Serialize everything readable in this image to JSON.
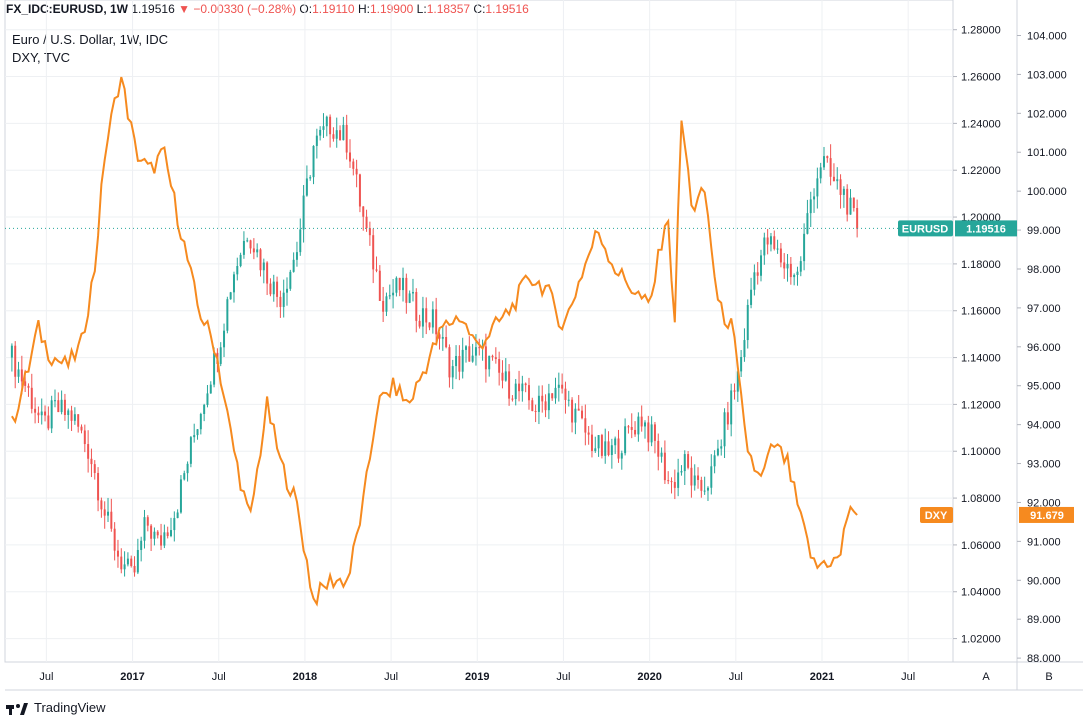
{
  "header": {
    "symbol": "FX_IDC:EURUSD, 1W",
    "last": "1.19516",
    "change": "−0.00330 (−0.28%)",
    "o_label": "O:",
    "o": "1.19110",
    "h_label": "H:",
    "h": "1.19900",
    "l_label": "L:",
    "l": "1.18357",
    "c_label": "C:",
    "c": "1.19516"
  },
  "legend": {
    "main": "Euro / U.S. Dollar, 1W, IDC",
    "compare": "DXY, TVC"
  },
  "footer": {
    "brand": "TradingView"
  },
  "axis_buttons": {
    "a": "A",
    "b": "B"
  },
  "colors": {
    "up": "#26a69a",
    "down": "#ef5350",
    "dxy": "#f68a1f",
    "eurusd_tag": "#26a69a",
    "grid": "#eef0f3",
    "border": "#d1d4dc"
  },
  "chart_data": {
    "type": "line",
    "x_range": [
      "2016-04",
      "2021-09"
    ],
    "x_ticks": [
      {
        "label": "Jul",
        "t": 2016.5
      },
      {
        "label": "2017",
        "t": 2017.0
      },
      {
        "label": "Jul",
        "t": 2017.5
      },
      {
        "label": "2018",
        "t": 2018.0
      },
      {
        "label": "Jul",
        "t": 2018.5
      },
      {
        "label": "2019",
        "t": 2019.0
      },
      {
        "label": "Jul",
        "t": 2019.5
      },
      {
        "label": "2020",
        "t": 2020.0
      },
      {
        "label": "Jul",
        "t": 2020.5
      },
      {
        "label": "2021",
        "t": 2021.0
      },
      {
        "label": "Jul",
        "t": 2021.5
      }
    ],
    "axis_a": {
      "range": [
        1.01,
        1.285
      ],
      "ticks": [
        "1.02000",
        "1.04000",
        "1.06000",
        "1.08000",
        "1.10000",
        "1.12000",
        "1.14000",
        "1.16000",
        "1.18000",
        "1.20000",
        "1.22000",
        "1.24000",
        "1.26000",
        "1.28000"
      ]
    },
    "axis_b": {
      "range": [
        87.9,
        104.45
      ],
      "ticks": [
        "88.000",
        "89.000",
        "90.000",
        "91.000",
        "92.000",
        "93.000",
        "94.000",
        "95.000",
        "96.000",
        "97.000",
        "98.000",
        "99.000",
        "100.000",
        "101.000",
        "102.000",
        "103.000",
        "104.000"
      ]
    },
    "series": [
      {
        "name": "EURUSD",
        "kind": "candlestick",
        "last_label": "1.19516",
        "points": [
          {
            "t": 2016.3,
            "v": 1.14
          },
          {
            "t": 2016.4,
            "v": 1.125
          },
          {
            "t": 2016.48,
            "v": 1.11
          },
          {
            "t": 2016.55,
            "v": 1.118
          },
          {
            "t": 2016.65,
            "v": 1.115
          },
          {
            "t": 2016.75,
            "v": 1.1
          },
          {
            "t": 2016.85,
            "v": 1.07
          },
          {
            "t": 2016.92,
            "v": 1.055
          },
          {
            "t": 2017.0,
            "v": 1.045
          },
          {
            "t": 2017.08,
            "v": 1.07
          },
          {
            "t": 2017.15,
            "v": 1.06
          },
          {
            "t": 2017.25,
            "v": 1.075
          },
          {
            "t": 2017.35,
            "v": 1.105
          },
          {
            "t": 2017.42,
            "v": 1.125
          },
          {
            "t": 2017.5,
            "v": 1.145
          },
          {
            "t": 2017.58,
            "v": 1.175
          },
          {
            "t": 2017.67,
            "v": 1.195
          },
          {
            "t": 2017.75,
            "v": 1.18
          },
          {
            "t": 2017.85,
            "v": 1.165
          },
          {
            "t": 2017.95,
            "v": 1.185
          },
          {
            "t": 2018.05,
            "v": 1.23
          },
          {
            "t": 2018.15,
            "v": 1.24
          },
          {
            "t": 2018.25,
            "v": 1.232
          },
          {
            "t": 2018.35,
            "v": 1.195
          },
          {
            "t": 2018.45,
            "v": 1.165
          },
          {
            "t": 2018.55,
            "v": 1.17
          },
          {
            "t": 2018.65,
            "v": 1.16
          },
          {
            "t": 2018.75,
            "v": 1.155
          },
          {
            "t": 2018.85,
            "v": 1.135
          },
          {
            "t": 2018.95,
            "v": 1.142
          },
          {
            "t": 2019.05,
            "v": 1.14
          },
          {
            "t": 2019.15,
            "v": 1.13
          },
          {
            "t": 2019.25,
            "v": 1.125
          },
          {
            "t": 2019.35,
            "v": 1.118
          },
          {
            "t": 2019.45,
            "v": 1.128
          },
          {
            "t": 2019.55,
            "v": 1.118
          },
          {
            "t": 2019.65,
            "v": 1.105
          },
          {
            "t": 2019.75,
            "v": 1.098
          },
          {
            "t": 2019.85,
            "v": 1.105
          },
          {
            "t": 2019.95,
            "v": 1.115
          },
          {
            "t": 2020.05,
            "v": 1.1
          },
          {
            "t": 2020.12,
            "v": 1.085
          },
          {
            "t": 2020.2,
            "v": 1.095
          },
          {
            "t": 2020.28,
            "v": 1.082
          },
          {
            "t": 2020.36,
            "v": 1.09
          },
          {
            "t": 2020.45,
            "v": 1.115
          },
          {
            "t": 2020.52,
            "v": 1.135
          },
          {
            "t": 2020.6,
            "v": 1.175
          },
          {
            "t": 2020.68,
            "v": 1.19
          },
          {
            "t": 2020.78,
            "v": 1.18
          },
          {
            "t": 2020.86,
            "v": 1.175
          },
          {
            "t": 2020.94,
            "v": 1.21
          },
          {
            "t": 2021.0,
            "v": 1.225
          },
          {
            "t": 2021.06,
            "v": 1.215
          },
          {
            "t": 2021.13,
            "v": 1.21
          },
          {
            "t": 2021.2,
            "v": 1.195
          }
        ]
      },
      {
        "name": "DXY",
        "kind": "line",
        "last_label": "91.679",
        "points": [
          {
            "t": 2016.3,
            "v": 94.0
          },
          {
            "t": 2016.4,
            "v": 95.5
          },
          {
            "t": 2016.45,
            "v": 96.5
          },
          {
            "t": 2016.52,
            "v": 95.8
          },
          {
            "t": 2016.62,
            "v": 95.5
          },
          {
            "t": 2016.7,
            "v": 96.0
          },
          {
            "t": 2016.78,
            "v": 98.0
          },
          {
            "t": 2016.84,
            "v": 101.0
          },
          {
            "t": 2016.93,
            "v": 103.0
          },
          {
            "t": 2017.02,
            "v": 101.0
          },
          {
            "t": 2017.1,
            "v": 100.5
          },
          {
            "t": 2017.18,
            "v": 101.0
          },
          {
            "t": 2017.28,
            "v": 99.0
          },
          {
            "t": 2017.38,
            "v": 97.0
          },
          {
            "t": 2017.48,
            "v": 96.0
          },
          {
            "t": 2017.58,
            "v": 93.5
          },
          {
            "t": 2017.68,
            "v": 91.5
          },
          {
            "t": 2017.78,
            "v": 94.5
          },
          {
            "t": 2017.86,
            "v": 93.0
          },
          {
            "t": 2017.95,
            "v": 92.0
          },
          {
            "t": 2018.05,
            "v": 89.5
          },
          {
            "t": 2018.15,
            "v": 90.0
          },
          {
            "t": 2018.25,
            "v": 90.0
          },
          {
            "t": 2018.34,
            "v": 92.0
          },
          {
            "t": 2018.42,
            "v": 94.5
          },
          {
            "t": 2018.52,
            "v": 95.0
          },
          {
            "t": 2018.6,
            "v": 94.5
          },
          {
            "t": 2018.7,
            "v": 95.5
          },
          {
            "t": 2018.8,
            "v": 96.5
          },
          {
            "t": 2018.9,
            "v": 96.8
          },
          {
            "t": 2019.0,
            "v": 96.0
          },
          {
            "t": 2019.1,
            "v": 96.5
          },
          {
            "t": 2019.2,
            "v": 97.0
          },
          {
            "t": 2019.3,
            "v": 97.8
          },
          {
            "t": 2019.4,
            "v": 97.5
          },
          {
            "t": 2019.5,
            "v": 96.5
          },
          {
            "t": 2019.6,
            "v": 97.8
          },
          {
            "t": 2019.7,
            "v": 99.0
          },
          {
            "t": 2019.8,
            "v": 98.0
          },
          {
            "t": 2019.9,
            "v": 97.5
          },
          {
            "t": 2020.0,
            "v": 97.0
          },
          {
            "t": 2020.1,
            "v": 99.5
          },
          {
            "t": 2020.15,
            "v": 96.5
          },
          {
            "t": 2020.18,
            "v": 102.0
          },
          {
            "t": 2020.25,
            "v": 99.5
          },
          {
            "t": 2020.32,
            "v": 100.0
          },
          {
            "t": 2020.4,
            "v": 97.0
          },
          {
            "t": 2020.48,
            "v": 96.5
          },
          {
            "t": 2020.56,
            "v": 93.5
          },
          {
            "t": 2020.64,
            "v": 92.5
          },
          {
            "t": 2020.72,
            "v": 93.5
          },
          {
            "t": 2020.8,
            "v": 93.0
          },
          {
            "t": 2020.88,
            "v": 91.5
          },
          {
            "t": 2020.96,
            "v": 90.3
          },
          {
            "t": 2021.02,
            "v": 90.5
          },
          {
            "t": 2021.1,
            "v": 90.5
          },
          {
            "t": 2021.16,
            "v": 92.0
          },
          {
            "t": 2021.2,
            "v": 91.679
          }
        ]
      }
    ]
  }
}
